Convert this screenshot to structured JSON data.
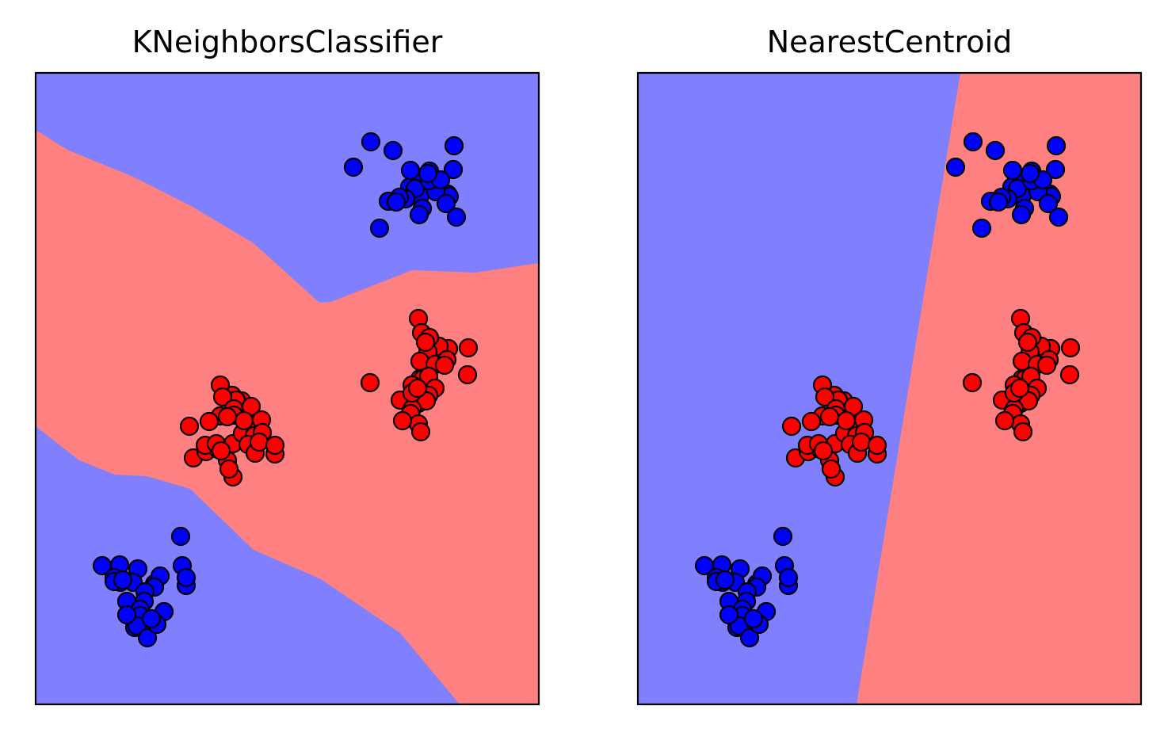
{
  "colors": {
    "blue_region": "#8080ff",
    "red_region": "#ff8080",
    "blue_point": "#0000ff",
    "red_point": "#ff0000",
    "point_edge": "#000000"
  },
  "chart_data": [
    {
      "type": "scatter",
      "title": "KNeighborsClassifier",
      "xlabel": "",
      "ylabel": "",
      "xlim": [
        0,
        635
      ],
      "ylim": [
        0,
        797
      ],
      "ticks": false,
      "grid": false,
      "regions": [
        {
          "class": "blue",
          "polygon": [
            [
              0,
              797
            ],
            [
              0,
              725
            ],
            [
              40,
              700
            ],
            [
              125,
              665
            ],
            [
              198,
              628
            ],
            [
              275,
              582
            ],
            [
              358,
              507
            ],
            [
              373,
              508
            ],
            [
              475,
              548
            ],
            [
              555,
              545
            ],
            [
              635,
              557
            ],
            [
              635,
              797
            ]
          ]
        },
        {
          "class": "blue",
          "polygon": [
            [
              0,
              351
            ],
            [
              55,
              308
            ],
            [
              100,
              290
            ],
            [
              140,
              288
            ],
            [
              195,
              272
            ],
            [
              275,
              195
            ],
            [
              360,
              158
            ],
            [
              460,
              90
            ],
            [
              535,
              0
            ],
            [
              0,
              0
            ]
          ]
        }
      ],
      "background_class": "red",
      "series": [
        {
          "class": "blue",
          "points": [
            [
              423,
              710
            ],
            [
              451,
              699
            ],
            [
              528,
              705
            ],
            [
              401,
              678
            ],
            [
              445,
              635
            ],
            [
              434,
              601
            ],
            [
              527,
              675
            ],
            [
              497,
              673
            ],
            [
              484,
              664
            ],
            [
              472,
              653
            ],
            [
              497,
              652
            ],
            [
              520,
              644
            ],
            [
              522,
              641
            ],
            [
              476,
              643
            ],
            [
              485,
              642
            ],
            [
              505,
              647
            ],
            [
              518,
              632
            ],
            [
              531,
              615
            ],
            [
              488,
              626
            ],
            [
              479,
              651
            ],
            [
              497,
              661
            ],
            [
              511,
              662
            ],
            [
              473,
              674
            ],
            [
              467,
              638
            ],
            [
              459,
              640
            ],
            [
              455,
              634
            ],
            [
              484,
              618
            ],
            [
              495,
              670
            ],
            [
              183,
              212
            ],
            [
              185,
              175
            ],
            [
              190,
              150
            ],
            [
              190,
              160
            ],
            [
              84,
              175
            ],
            [
              106,
              176
            ],
            [
              129,
              171
            ],
            [
              99,
              160
            ],
            [
              123,
              154
            ],
            [
              107,
              154
            ],
            [
              150,
              152
            ],
            [
              157,
              162
            ],
            [
              115,
              130
            ],
            [
              150,
              148
            ],
            [
              138,
              142
            ],
            [
              137,
              130
            ],
            [
              132,
              120
            ],
            [
              132,
              112
            ],
            [
              125,
              97
            ],
            [
              162,
              117
            ],
            [
              145,
              99
            ],
            [
              128,
              99
            ],
            [
              141,
              84
            ],
            [
              153,
              101
            ],
            [
              146,
              108
            ],
            [
              115,
              113
            ],
            [
              99,
              155
            ],
            [
              110,
              157
            ]
          ]
        },
        {
          "class": "red",
          "points": [
            [
              483,
              487
            ],
            [
              546,
              450
            ],
            [
              545,
              416
            ],
            [
              521,
              449
            ],
            [
              509,
              452
            ],
            [
              495,
              445
            ],
            [
              487,
              469
            ],
            [
              497,
              463
            ],
            [
              492,
              457
            ],
            [
              485,
              433
            ],
            [
              504,
              429
            ],
            [
              485,
              411
            ],
            [
              489,
              411
            ],
            [
              484,
              393
            ],
            [
              475,
              403
            ],
            [
              483,
              380
            ],
            [
              460,
              384
            ],
            [
              487,
              397
            ],
            [
              519,
              435
            ],
            [
              516,
              428
            ],
            [
              496,
              414
            ],
            [
              504,
              399
            ],
            [
              496,
              390
            ],
            [
              493,
              383
            ],
            [
              422,
              406
            ],
            [
              475,
              373
            ],
            [
              473,
              367
            ],
            [
              483,
              354
            ],
            [
              486,
              344
            ],
            [
              463,
              358
            ],
            [
              475,
              393
            ],
            [
              482,
              399
            ],
            [
              249,
              287
            ],
            [
              199,
              311
            ],
            [
              242,
              308
            ],
            [
              249,
              329
            ],
            [
              215,
              319
            ],
            [
              230,
              322
            ],
            [
              244,
              297
            ],
            [
              214,
              327
            ],
            [
              194,
              351
            ],
            [
              260,
              383
            ],
            [
              268,
              356
            ],
            [
              248,
              390
            ],
            [
              233,
              403
            ],
            [
              253,
              384
            ],
            [
              236,
              388
            ],
            [
              233,
              364
            ],
            [
              250,
              373
            ],
            [
              261,
              342
            ],
            [
              272,
              376
            ],
            [
              276,
              339
            ],
            [
              250,
              365
            ],
            [
              263,
              358
            ],
            [
              285,
              359
            ],
            [
              286,
              343
            ],
            [
              302,
              316
            ],
            [
              228,
              329
            ],
            [
              234,
              320
            ],
            [
              219,
              357
            ],
            [
              242,
              363
            ],
            [
              268,
              328
            ],
            [
              277,
              317
            ],
            [
              282,
              331
            ],
            [
              302,
              327
            ]
          ]
        }
      ]
    },
    {
      "type": "scatter",
      "title": "NearestCentroid",
      "xlabel": "",
      "ylabel": "",
      "xlim": [
        0,
        635
      ],
      "ylim": [
        0,
        797
      ],
      "ticks": false,
      "grid": false,
      "regions": [
        {
          "class": "blue",
          "polygon": [
            [
              0,
              0
            ],
            [
              276,
              0
            ],
            [
              407,
              797
            ],
            [
              0,
              797
            ]
          ]
        }
      ],
      "background_class": "red",
      "series": [
        {
          "class": "blue",
          "points": [
            [
              423,
              710
            ],
            [
              451,
              699
            ],
            [
              528,
              705
            ],
            [
              401,
              678
            ],
            [
              445,
              635
            ],
            [
              434,
              601
            ],
            [
              527,
              675
            ],
            [
              497,
              673
            ],
            [
              484,
              664
            ],
            [
              472,
              653
            ],
            [
              497,
              652
            ],
            [
              520,
              644
            ],
            [
              522,
              641
            ],
            [
              476,
              643
            ],
            [
              485,
              642
            ],
            [
              505,
              647
            ],
            [
              518,
              632
            ],
            [
              531,
              615
            ],
            [
              488,
              626
            ],
            [
              479,
              651
            ],
            [
              497,
              661
            ],
            [
              511,
              662
            ],
            [
              473,
              674
            ],
            [
              467,
              638
            ],
            [
              459,
              640
            ],
            [
              455,
              634
            ],
            [
              484,
              618
            ],
            [
              495,
              670
            ],
            [
              183,
              212
            ],
            [
              185,
              175
            ],
            [
              190,
              150
            ],
            [
              190,
              160
            ],
            [
              84,
              175
            ],
            [
              106,
              176
            ],
            [
              129,
              171
            ],
            [
              99,
              160
            ],
            [
              123,
              154
            ],
            [
              107,
              154
            ],
            [
              150,
              152
            ],
            [
              157,
              162
            ],
            [
              115,
              130
            ],
            [
              150,
              148
            ],
            [
              138,
              142
            ],
            [
              137,
              130
            ],
            [
              132,
              120
            ],
            [
              132,
              112
            ],
            [
              125,
              97
            ],
            [
              162,
              117
            ],
            [
              145,
              99
            ],
            [
              128,
              99
            ],
            [
              141,
              84
            ],
            [
              153,
              101
            ],
            [
              146,
              108
            ],
            [
              115,
              113
            ],
            [
              99,
              155
            ],
            [
              110,
              157
            ]
          ]
        },
        {
          "class": "red",
          "points": [
            [
              483,
              487
            ],
            [
              546,
              450
            ],
            [
              545,
              416
            ],
            [
              521,
              449
            ],
            [
              509,
              452
            ],
            [
              495,
              445
            ],
            [
              487,
              469
            ],
            [
              497,
              463
            ],
            [
              492,
              457
            ],
            [
              485,
              433
            ],
            [
              504,
              429
            ],
            [
              485,
              411
            ],
            [
              489,
              411
            ],
            [
              484,
              393
            ],
            [
              475,
              403
            ],
            [
              483,
              380
            ],
            [
              460,
              384
            ],
            [
              487,
              397
            ],
            [
              519,
              435
            ],
            [
              516,
              428
            ],
            [
              496,
              414
            ],
            [
              504,
              399
            ],
            [
              496,
              390
            ],
            [
              493,
              383
            ],
            [
              422,
              406
            ],
            [
              475,
              373
            ],
            [
              473,
              367
            ],
            [
              483,
              354
            ],
            [
              486,
              344
            ],
            [
              463,
              358
            ],
            [
              475,
              393
            ],
            [
              482,
              399
            ],
            [
              249,
              287
            ],
            [
              199,
              311
            ],
            [
              242,
              308
            ],
            [
              249,
              329
            ],
            [
              215,
              319
            ],
            [
              230,
              322
            ],
            [
              244,
              297
            ],
            [
              214,
              327
            ],
            [
              194,
              351
            ],
            [
              260,
              383
            ],
            [
              268,
              356
            ],
            [
              248,
              390
            ],
            [
              233,
              403
            ],
            [
              253,
              384
            ],
            [
              236,
              388
            ],
            [
              233,
              364
            ],
            [
              250,
              373
            ],
            [
              261,
              342
            ],
            [
              272,
              376
            ],
            [
              276,
              339
            ],
            [
              250,
              365
            ],
            [
              263,
              358
            ],
            [
              285,
              359
            ],
            [
              286,
              343
            ],
            [
              302,
              316
            ],
            [
              228,
              329
            ],
            [
              234,
              320
            ],
            [
              219,
              357
            ],
            [
              242,
              363
            ],
            [
              268,
              328
            ],
            [
              277,
              317
            ],
            [
              282,
              331
            ],
            [
              302,
              327
            ]
          ]
        }
      ]
    }
  ]
}
